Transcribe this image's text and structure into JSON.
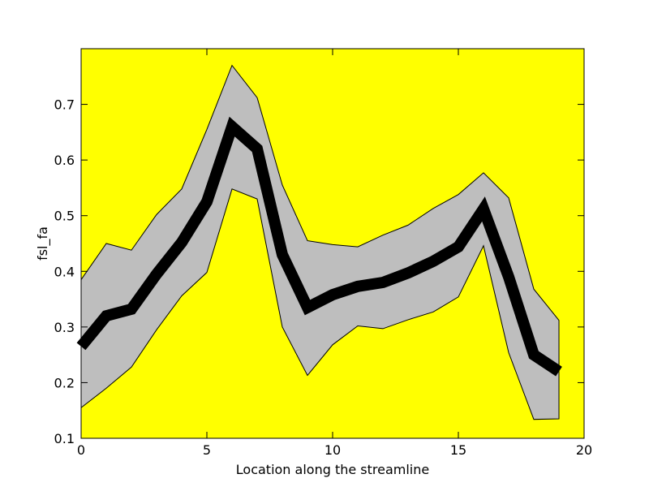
{
  "chart_data": {
    "type": "line",
    "title": "",
    "xlabel": "Location along the streamline",
    "ylabel": "fsl_fa",
    "xlim": [
      0,
      20
    ],
    "ylim": [
      0.1,
      0.8
    ],
    "xticks": [
      0,
      5,
      10,
      15,
      20
    ],
    "yticks": [
      0.1,
      0.2,
      0.3,
      0.4,
      0.5,
      0.6,
      0.7
    ],
    "grid": false,
    "legend": "none",
    "background_color": "#ffff00",
    "band_color": "#bebebe",
    "line_color": "#000000",
    "x": [
      0,
      1,
      2,
      3,
      4,
      5,
      6,
      7,
      8,
      9,
      10,
      11,
      12,
      13,
      14,
      15,
      16,
      17,
      18,
      19
    ],
    "series": [
      {
        "values": [
          0.265,
          0.32,
          0.332,
          0.395,
          0.452,
          0.525,
          0.66,
          0.62,
          0.43,
          0.335,
          0.358,
          0.373,
          0.38,
          0.397,
          0.418,
          0.444,
          0.512,
          0.39,
          0.25,
          0.22
        ]
      }
    ],
    "band_upper": [
      0.385,
      0.45,
      0.438,
      0.502,
      0.548,
      0.655,
      0.77,
      0.712,
      0.555,
      0.455,
      0.448,
      0.444,
      0.465,
      0.483,
      0.513,
      0.538,
      0.577,
      0.532,
      0.368,
      0.312
    ],
    "band_lower": [
      0.155,
      0.19,
      0.228,
      0.295,
      0.356,
      0.398,
      0.548,
      0.53,
      0.3,
      0.213,
      0.268,
      0.302,
      0.297,
      0.313,
      0.327,
      0.354,
      0.446,
      0.254,
      0.134,
      0.135
    ]
  }
}
